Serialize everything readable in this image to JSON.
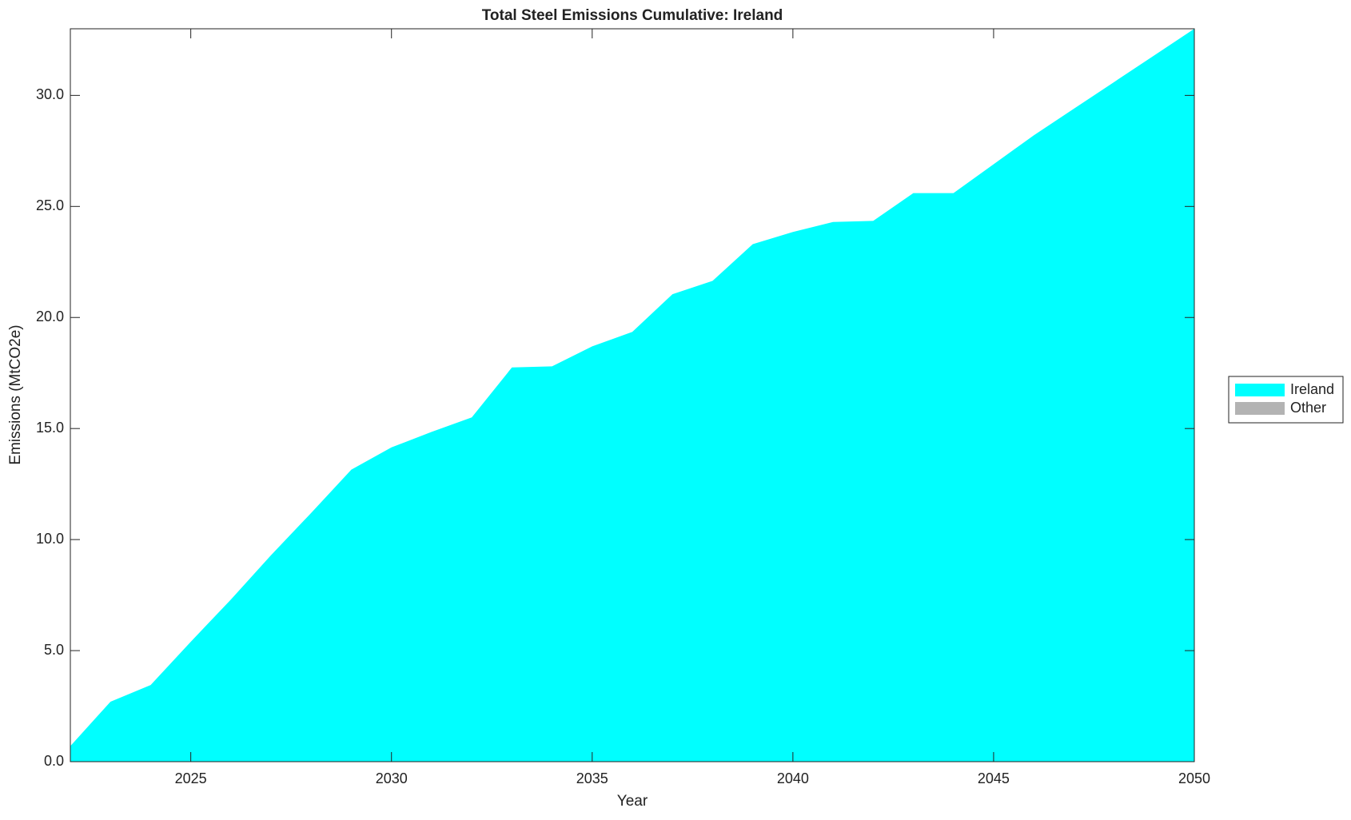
{
  "chart_data": {
    "type": "stacked_area",
    "title": "Total Steel Emissions Cumulative: Ireland",
    "x_label": "Year",
    "y_label": "Emissions (MtCO2e)",
    "x": [
      2022,
      2023,
      2024,
      2025,
      2026,
      2027,
      2028,
      2029,
      2030,
      2031,
      2032,
      2033,
      2034,
      2035,
      2036,
      2037,
      2038,
      2039,
      2040,
      2041,
      2042,
      2043,
      2044,
      2045,
      2046,
      2047,
      2048,
      2049,
      2050
    ],
    "series": [
      {
        "name": "Ireland",
        "color": "#00ffff",
        "values": [
          0.7,
          2.7,
          3.45,
          5.4,
          7.3,
          9.3,
          11.2,
          13.15,
          14.15,
          14.85,
          15.5,
          17.75,
          17.8,
          18.7,
          19.35,
          21.05,
          21.65,
          23.3,
          23.85,
          24.3,
          24.35,
          25.6,
          25.6,
          26.9,
          28.2,
          29.4,
          30.6,
          31.8,
          33.0
        ]
      },
      {
        "name": "Other",
        "color": "#b3b3b3",
        "values": [
          0,
          0,
          0,
          0,
          0,
          0,
          0,
          0,
          0,
          0,
          0,
          0,
          0,
          0,
          0,
          0,
          0,
          0,
          0,
          0,
          0,
          0,
          0,
          0,
          0,
          0,
          0,
          0,
          0
        ]
      }
    ],
    "xlim": [
      2022,
      2050
    ],
    "xticks": [
      2025,
      2030,
      2035,
      2040,
      2045,
      2050
    ],
    "ylim": [
      0,
      33
    ],
    "yticks": [
      {
        "value": 0,
        "label": "0.0"
      },
      {
        "value": 5,
        "label": "5.0"
      },
      {
        "value": 10,
        "label": "10.0"
      },
      {
        "value": 15,
        "label": "15.0"
      },
      {
        "value": 20,
        "label": "20.0"
      },
      {
        "value": 25,
        "label": "25.0"
      },
      {
        "value": 30,
        "label": "30.0"
      }
    ],
    "legend": "right"
  }
}
